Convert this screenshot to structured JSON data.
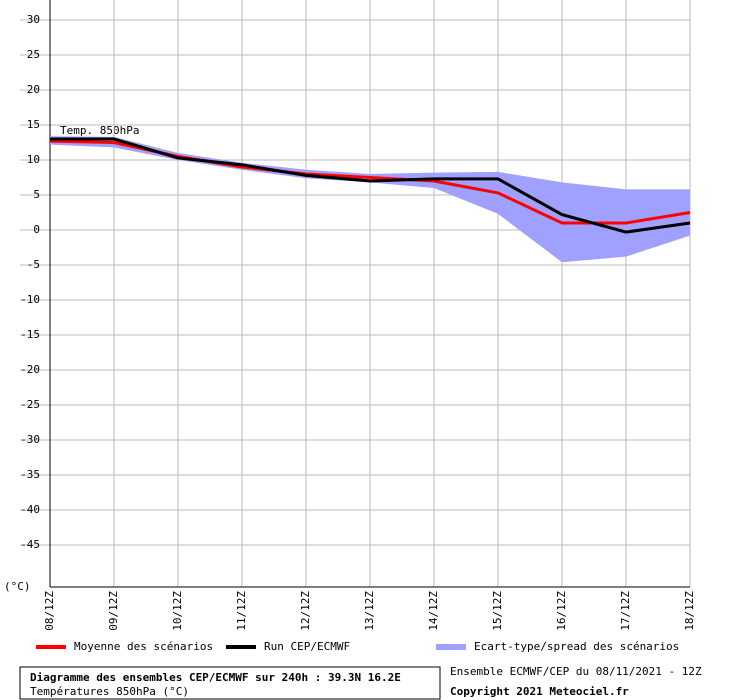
{
  "chart_data": {
    "type": "line",
    "annotation": "Temp. 850hPa",
    "y_unit_label": "(°C)",
    "title": "Diagramme des ensembles CEP/ECMWF sur 240h : 39.3N 16.2E",
    "subtitle": "Températures 850hPa (°C)",
    "run_info": "Ensemble ECMWF/CEP du 08/11/2021 - 12Z",
    "copyright": "Copyright 2021 Meteociel.fr",
    "categories": [
      "08/12Z",
      "09/12Z",
      "10/12Z",
      "11/12Z",
      "12/12Z",
      "13/12Z",
      "14/12Z",
      "15/12Z",
      "16/12Z",
      "17/12Z",
      "18/12Z"
    ],
    "series": [
      {
        "name": "Moyenne des scénarios",
        "color": "#ff0000",
        "values": [
          12.7,
          12.5,
          10.5,
          9.0,
          8.0,
          7.5,
          7.0,
          5.3,
          1.0,
          1.0,
          2.5
        ]
      },
      {
        "name": "Run CEP/ECMWF",
        "color": "#000000",
        "values": [
          13.0,
          13.0,
          10.3,
          9.3,
          7.8,
          7.0,
          7.3,
          7.3,
          2.2,
          -0.3,
          1.0
        ]
      },
      {
        "name": "Ecart-type/spread des scénarios",
        "color": "#a0a0ff",
        "type": "band",
        "upper": [
          13.4,
          13.3,
          11.0,
          9.6,
          8.6,
          8.0,
          8.2,
          8.3,
          6.8,
          5.8,
          5.8
        ],
        "lower": [
          12.2,
          11.8,
          10.0,
          8.6,
          7.4,
          6.8,
          6.0,
          2.3,
          -4.6,
          -3.8,
          -0.8
        ]
      }
    ],
    "ylim": [
      -51,
      32
    ],
    "yticks": [
      30,
      25,
      20,
      15,
      10,
      5,
      0,
      -5,
      -10,
      -15,
      -20,
      -25,
      -30,
      -35,
      -40,
      -45
    ],
    "grid": true
  }
}
